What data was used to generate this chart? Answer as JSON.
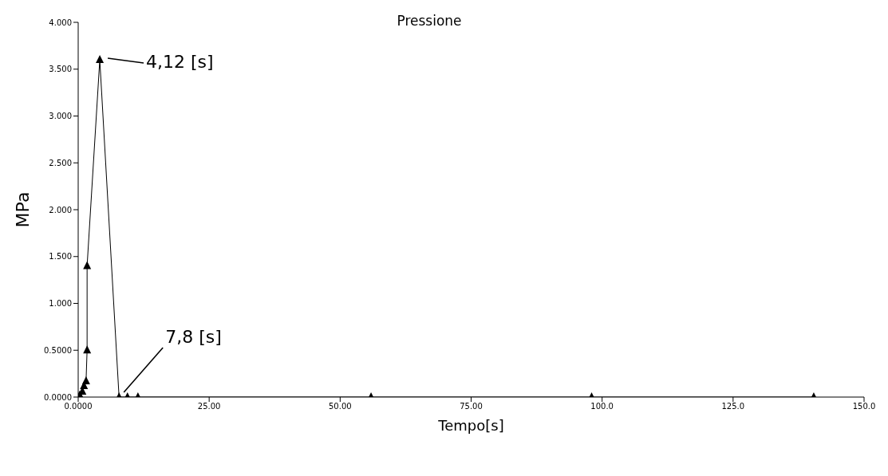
{
  "chart_data": {
    "type": "line",
    "title": "Pressione",
    "xlabel": "Tempo[s]",
    "ylabel": "MPa",
    "x": [
      0.3,
      0.8,
      1.1,
      1.5,
      1.7,
      1.7,
      4.12,
      7.8,
      9.4,
      11.4,
      55.9,
      98,
      140.4
    ],
    "series": [
      {
        "color": "#000000",
        "values": [
          0.02,
          0.06,
          0.12,
          0.17,
          0.5,
          1.4,
          3.6,
          0,
          0,
          0,
          0,
          0,
          0
        ]
      }
    ],
    "xlim": [
      0,
      150
    ],
    "xticks": [
      {
        "value": 0,
        "label": "0.0000"
      },
      {
        "value": 25,
        "label": "25.00"
      },
      {
        "value": 50,
        "label": "50.00"
      },
      {
        "value": 75,
        "label": "75.00"
      },
      {
        "value": 100,
        "label": "100.0"
      },
      {
        "value": 125,
        "label": "125.0"
      },
      {
        "value": 150,
        "label": "150.0"
      }
    ],
    "ylim": [
      0,
      4
    ],
    "yticks": [
      {
        "value": 0,
        "label": "0.0000"
      },
      {
        "value": 0.5,
        "label": "0.5000"
      },
      {
        "value": 1,
        "label": "1.000"
      },
      {
        "value": 1.5,
        "label": "1.500"
      },
      {
        "value": 2,
        "label": "2.000"
      },
      {
        "value": 2.5,
        "label": "2.500"
      },
      {
        "value": 3,
        "label": "3.000"
      },
      {
        "value": 3.5,
        "label": "3.500"
      },
      {
        "value": 4,
        "label": "4.000"
      }
    ],
    "annotations": [
      {
        "text": "4,12 [s]",
        "x": 4.12,
        "y": 3.6
      },
      {
        "text": "7,8 [s]",
        "x": 7.8,
        "y": 0
      }
    ],
    "grid": false,
    "marker": "triangle",
    "line_style": "solid"
  }
}
